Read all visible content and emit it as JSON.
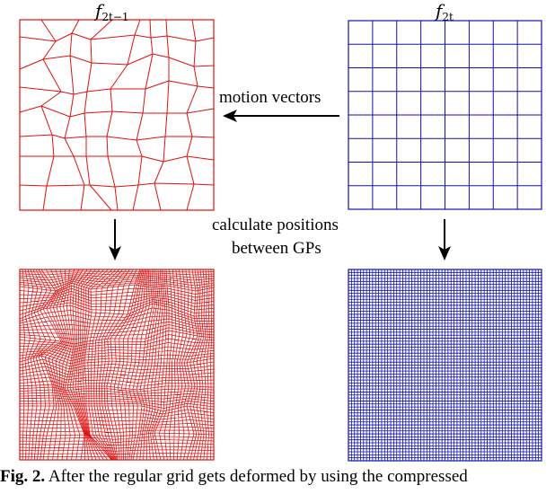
{
  "labels": {
    "frame_left": "f",
    "frame_left_sub": "2t−1",
    "frame_right": "f",
    "frame_right_sub": "2t",
    "motion": "motion vectors",
    "calc_line1": "calculate positions",
    "calc_line2": "between GPs"
  },
  "caption": {
    "prefix": "Fig. 2.",
    "text": "After the regular grid gets deformed by using the compressed"
  },
  "colors": {
    "left_grid": "#e01010",
    "right_grid": "#1010b0",
    "arrow": "#000000"
  }
}
